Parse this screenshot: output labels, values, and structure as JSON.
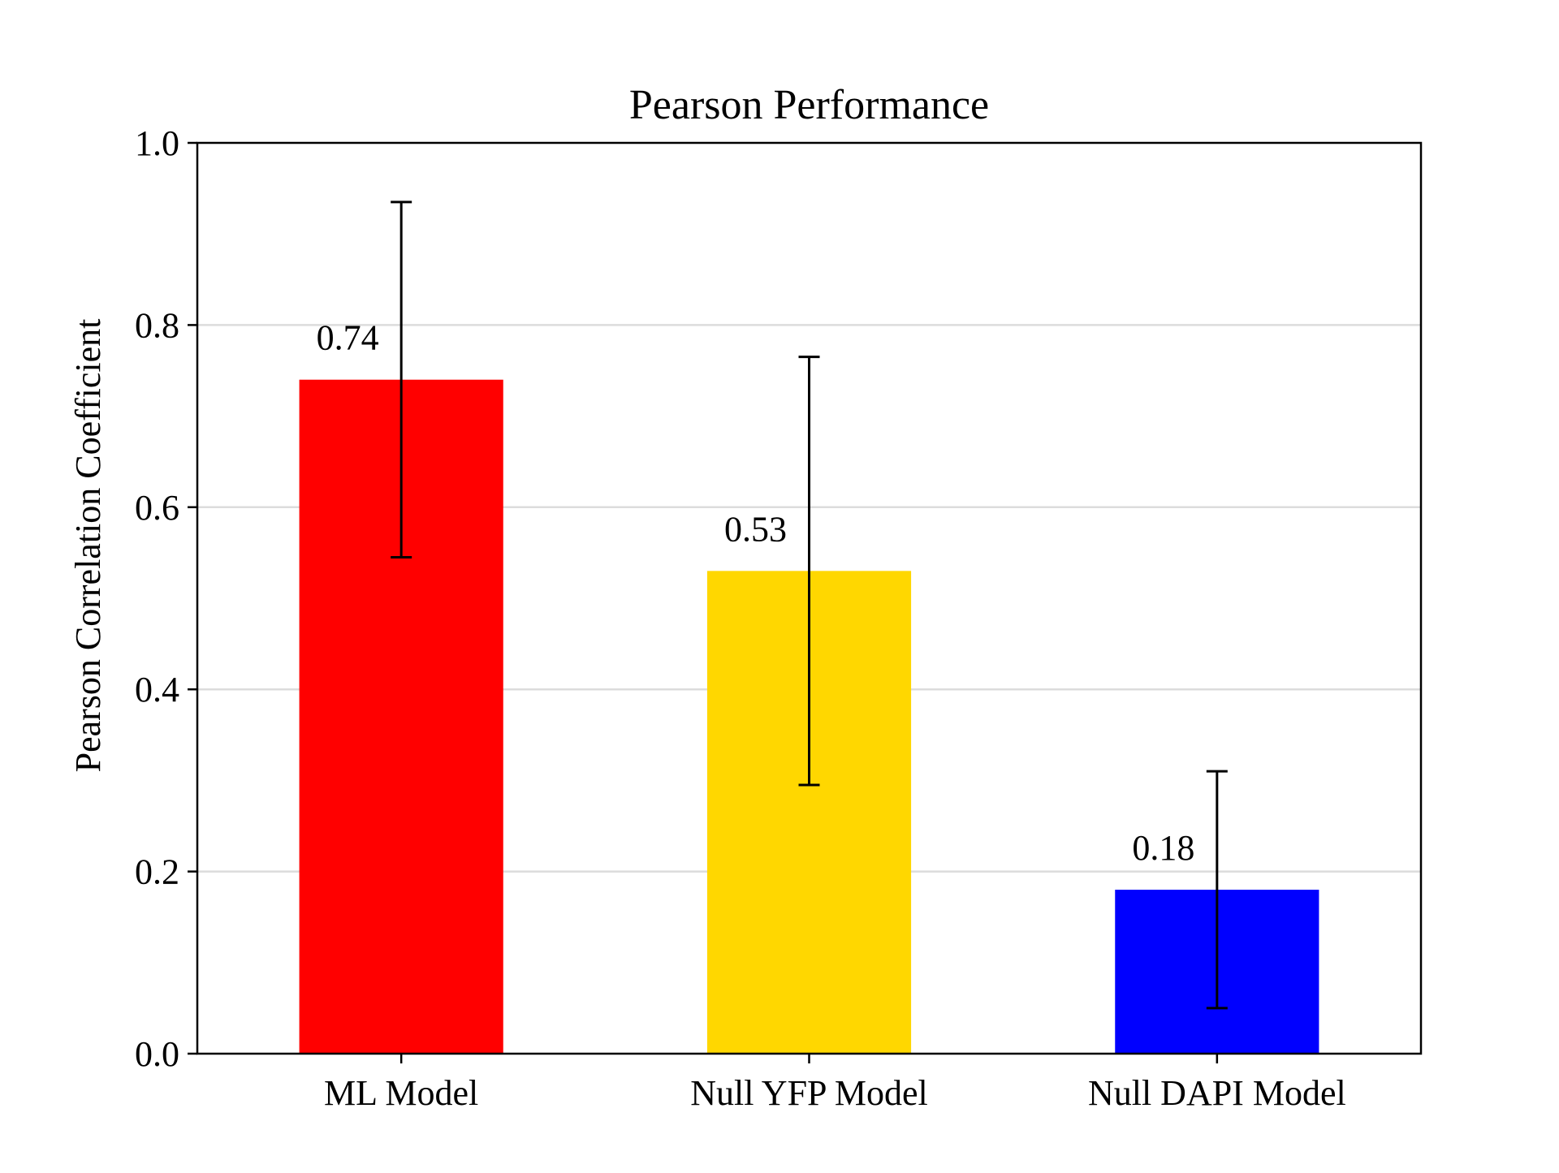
{
  "chart_data": {
    "type": "bar",
    "title": "Pearson Performance",
    "xlabel": "",
    "ylabel": "Pearson Correlation Coefficient",
    "categories": [
      "ML Model",
      "Null YFP Model",
      "Null DAPI Model"
    ],
    "values": [
      0.74,
      0.53,
      0.18
    ],
    "value_labels": [
      "0.74",
      "0.53",
      "0.18"
    ],
    "error_low": [
      0.545,
      0.295,
      0.05
    ],
    "error_high": [
      0.935,
      0.765,
      0.31
    ],
    "bar_colors": [
      "#ff0000",
      "#ffd700",
      "#0000ff"
    ],
    "ylim": [
      0,
      1.0
    ],
    "yticks": [
      0.0,
      0.2,
      0.4,
      0.6,
      0.8,
      1.0
    ],
    "ytick_labels": [
      "0.0",
      "0.2",
      "0.4",
      "0.6",
      "0.8",
      "1.0"
    ],
    "grid": "horizontal",
    "legend": "none"
  }
}
